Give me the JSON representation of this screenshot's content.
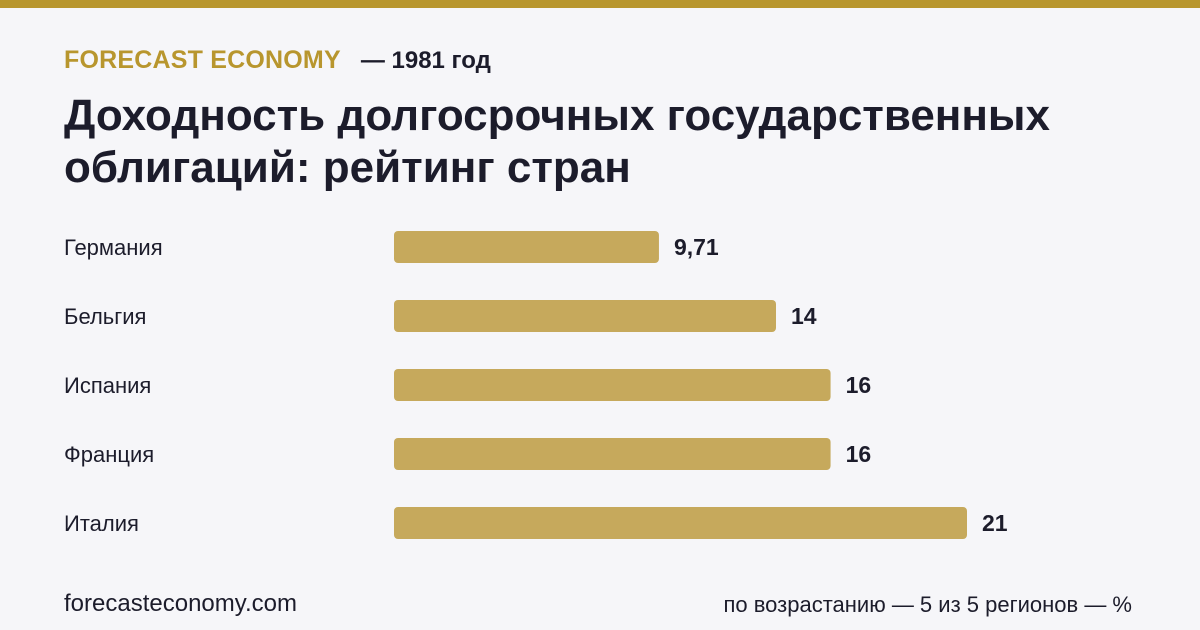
{
  "header": {
    "brand": "FORECAST ECONOMY",
    "year_label": "— 1981 год",
    "title": "Доходность долгосрочных государственных облигаций: рейтинг стран"
  },
  "footer": {
    "site": "forecasteconomy.com",
    "note": "по возрастанию — 5 из 5 регионов — %"
  },
  "colors": {
    "accent": "#b8962e",
    "bar": "#c6a95c",
    "text": "#1c1c2b",
    "background": "#f6f6f9"
  },
  "chart_data": {
    "type": "bar",
    "orientation": "horizontal",
    "categories": [
      "Германия",
      "Бельгия",
      "Испания",
      "Франция",
      "Италия"
    ],
    "values": [
      9.71,
      14,
      16,
      16,
      21
    ],
    "value_labels": [
      "9,71",
      "14",
      "16",
      "16",
      "21"
    ],
    "title": "Доходность долгосрочных государственных облигаций: рейтинг стран",
    "xlabel": "",
    "ylabel": "",
    "xlim": [
      0,
      21
    ],
    "grid": false,
    "legend": "none"
  }
}
